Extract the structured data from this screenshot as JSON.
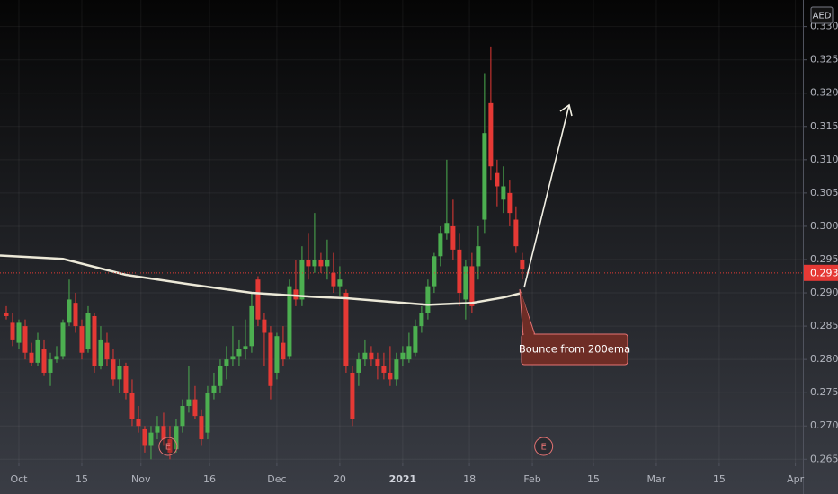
{
  "chart_data": {
    "type": "candlestick",
    "currency": "AED",
    "annotation": "Bounce from 200ema",
    "up_color": "#4caf50",
    "down_color": "#e53935",
    "x": [
      -2,
      -1,
      0,
      1,
      2,
      3,
      4,
      5,
      6,
      7,
      8,
      9,
      10,
      11,
      12,
      13,
      14,
      15,
      16,
      17,
      18,
      19,
      20,
      21,
      22,
      23,
      24,
      25,
      26,
      27,
      28,
      29,
      30,
      31,
      32,
      33,
      34,
      35,
      36,
      37,
      38,
      39,
      40,
      41,
      42,
      43,
      44,
      45,
      46,
      47,
      48,
      49,
      50,
      51,
      52,
      53,
      54,
      55,
      56,
      57,
      58,
      59,
      60,
      61,
      62,
      63,
      64,
      65,
      66,
      67,
      68,
      69,
      70,
      71,
      72,
      73,
      74,
      75,
      76,
      77,
      78,
      79,
      80
    ],
    "open": [
      0.287,
      0.2855,
      0.2825,
      0.285,
      0.281,
      0.2795,
      0.2815,
      0.278,
      0.28,
      0.2805,
      0.2855,
      0.2885,
      0.285,
      0.2815,
      0.2865,
      0.279,
      0.2825,
      0.28,
      0.277,
      0.279,
      0.275,
      0.271,
      0.2695,
      0.267,
      0.269,
      0.27,
      0.268,
      0.2665,
      0.27,
      0.273,
      0.274,
      0.2715,
      0.269,
      0.275,
      0.276,
      0.279,
      0.28,
      0.2805,
      0.2815,
      0.282,
      0.292,
      0.286,
      0.284,
      0.278,
      0.2825,
      0.2805,
      0.2905,
      0.289,
      0.295,
      0.294,
      0.295,
      0.294,
      0.293,
      0.291,
      0.29,
      0.278,
      0.278,
      0.28,
      0.281,
      0.28,
      0.279,
      0.278,
      0.277,
      0.28,
      0.28,
      0.281,
      0.285,
      0.287,
      0.291,
      0.2955,
      0.299,
      0.3,
      0.2965,
      0.289,
      0.294,
      0.294,
      0.301,
      0.3185,
      0.308,
      0.304,
      0.305,
      0.301,
      0.295
    ],
    "high": [
      0.288,
      0.287,
      0.286,
      0.286,
      0.2825,
      0.284,
      0.283,
      0.281,
      0.282,
      0.286,
      0.292,
      0.29,
      0.286,
      0.288,
      0.287,
      0.285,
      0.284,
      0.2815,
      0.28,
      0.2795,
      0.277,
      0.273,
      0.27,
      0.27,
      0.2715,
      0.272,
      0.27,
      0.271,
      0.274,
      0.279,
      0.276,
      0.2725,
      0.276,
      0.278,
      0.28,
      0.282,
      0.285,
      0.283,
      0.286,
      0.29,
      0.2925,
      0.287,
      0.285,
      0.284,
      0.285,
      0.292,
      0.295,
      0.297,
      0.299,
      0.302,
      0.296,
      0.298,
      0.296,
      0.294,
      0.2905,
      0.279,
      0.281,
      0.283,
      0.282,
      0.281,
      0.281,
      0.282,
      0.281,
      0.282,
      0.284,
      0.286,
      0.288,
      0.292,
      0.296,
      0.3,
      0.31,
      0.304,
      0.299,
      0.295,
      0.296,
      0.3,
      0.323,
      0.327,
      0.31,
      0.309,
      0.307,
      0.303,
      0.296
    ],
    "low": [
      0.286,
      0.282,
      0.2815,
      0.28,
      0.279,
      0.279,
      0.2775,
      0.276,
      0.2795,
      0.28,
      0.285,
      0.284,
      0.28,
      0.281,
      0.278,
      0.2785,
      0.279,
      0.276,
      0.275,
      0.274,
      0.27,
      0.269,
      0.266,
      0.265,
      0.268,
      0.267,
      0.265,
      0.266,
      0.269,
      0.272,
      0.271,
      0.267,
      0.268,
      0.274,
      0.275,
      0.277,
      0.279,
      0.279,
      0.28,
      0.281,
      0.285,
      0.279,
      0.274,
      0.277,
      0.279,
      0.28,
      0.288,
      0.288,
      0.292,
      0.293,
      0.293,
      0.292,
      0.29,
      0.2895,
      0.278,
      0.27,
      0.276,
      0.279,
      0.279,
      0.277,
      0.277,
      0.276,
      0.276,
      0.279,
      0.2795,
      0.2805,
      0.284,
      0.286,
      0.29,
      0.294,
      0.298,
      0.295,
      0.288,
      0.286,
      0.287,
      0.292,
      0.299,
      0.307,
      0.303,
      0.302,
      0.3,
      0.296,
      0.292
    ],
    "close": [
      0.2865,
      0.283,
      0.2855,
      0.281,
      0.2795,
      0.283,
      0.278,
      0.28,
      0.2805,
      0.2855,
      0.289,
      0.285,
      0.281,
      0.287,
      0.279,
      0.283,
      0.28,
      0.277,
      0.279,
      0.275,
      0.271,
      0.27,
      0.267,
      0.269,
      0.27,
      0.268,
      0.266,
      0.27,
      0.273,
      0.274,
      0.2715,
      0.268,
      0.275,
      0.276,
      0.279,
      0.28,
      0.2805,
      0.2815,
      0.282,
      0.288,
      0.286,
      0.284,
      0.276,
      0.2835,
      0.28,
      0.291,
      0.289,
      0.295,
      0.294,
      0.295,
      0.294,
      0.295,
      0.291,
      0.292,
      0.279,
      0.271,
      0.28,
      0.281,
      0.28,
      0.279,
      0.278,
      0.277,
      0.28,
      0.281,
      0.282,
      0.285,
      0.287,
      0.291,
      0.2955,
      0.299,
      0.3005,
      0.2965,
      0.29,
      0.294,
      0.288,
      0.297,
      0.314,
      0.309,
      0.306,
      0.306,
      0.302,
      0.297,
      0.2935
    ],
    "ema": {
      "color": "#ece9d8",
      "x": [
        -3,
        7,
        17,
        27,
        37,
        47,
        52,
        57,
        65,
        72,
        77,
        80
      ],
      "values": [
        0.2956,
        0.2951,
        0.2927,
        0.2913,
        0.29,
        0.2894,
        0.2892,
        0.2888,
        0.2882,
        0.2885,
        0.2893,
        0.29
      ]
    },
    "last_price": {
      "value": 0.293,
      "color": "#e53935"
    },
    "earnings": {
      "x": [
        23.7,
        83.4
      ],
      "label": "E",
      "color": "#e57373"
    },
    "xlim": [
      -3,
      124.6
    ],
    "ylim": [
      0.2645,
      0.334
    ],
    "xticks": [
      {
        "value": 0,
        "label": "Oct"
      },
      {
        "value": 10,
        "label": "15"
      },
      {
        "value": 19.4,
        "label": "Nov"
      },
      {
        "value": 30.3,
        "label": "16"
      },
      {
        "value": 41,
        "label": "Dec"
      },
      {
        "value": 51,
        "label": "20"
      },
      {
        "value": 61,
        "label": "2021"
      },
      {
        "value": 71.6,
        "label": "18"
      },
      {
        "value": 81.6,
        "label": "Feb"
      },
      {
        "value": 91.3,
        "label": "15"
      },
      {
        "value": 101.3,
        "label": "Mar"
      },
      {
        "value": 111.3,
        "label": "15"
      },
      {
        "value": 123.4,
        "label": "Apr"
      }
    ],
    "yticks": [
      0.265,
      {
        "value": 0.27,
        "label": "0.270"
      },
      0.275,
      {
        "value": 0.28,
        "label": "0.280"
      },
      0.285,
      {
        "value": 0.29,
        "label": "0.290"
      },
      0.295,
      {
        "value": 0.3,
        "label": "0.300"
      },
      0.305,
      {
        "value": 0.31,
        "label": "0.310"
      },
      0.315,
      {
        "value": 0.32,
        "label": "0.320"
      },
      0.325,
      {
        "value": 0.33,
        "label": "0.330"
      }
    ],
    "grid": true
  }
}
